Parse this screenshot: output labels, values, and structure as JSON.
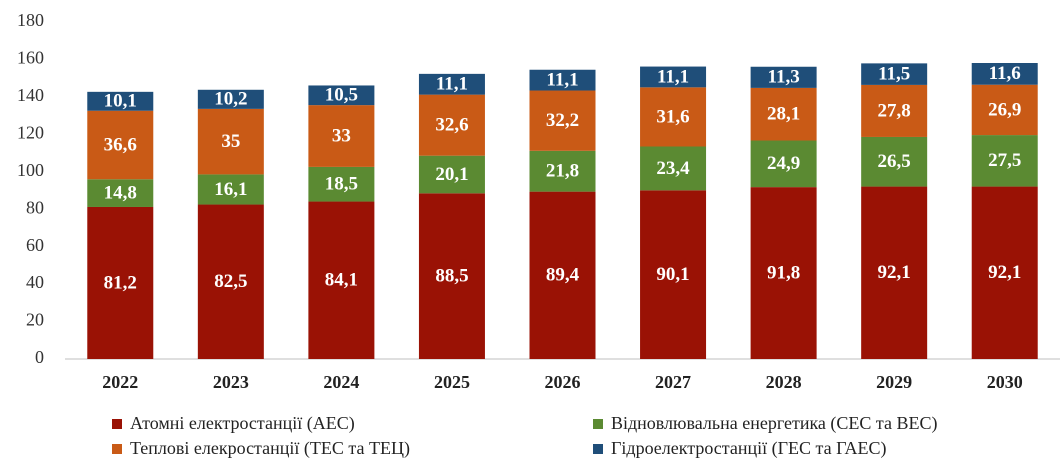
{
  "chart_data": {
    "type": "bar",
    "stacked": true,
    "categories": [
      "2022",
      "2023",
      "2024",
      "2025",
      "2026",
      "2027",
      "2028",
      "2029",
      "2030"
    ],
    "series": [
      {
        "name": "Атомні електростанції (АЕС)",
        "color": "#9a1205",
        "values": [
          81.2,
          82.5,
          84.1,
          88.5,
          89.4,
          90.1,
          91.8,
          92.1,
          92.1
        ],
        "value_labels": [
          "81,2",
          "82,5",
          "84,1",
          "88,5",
          "89,4",
          "90,1",
          "91,8",
          "92,1",
          "92,1"
        ]
      },
      {
        "name": "Відновлювальна енергетика (СЕС та ВЕС)",
        "color": "#5b8a32",
        "values": [
          14.8,
          16.1,
          18.5,
          20.1,
          21.8,
          23.4,
          24.9,
          26.5,
          27.5
        ],
        "value_labels": [
          "14,8",
          "16,1",
          "18,5",
          "20,1",
          "21,8",
          "23,4",
          "24,9",
          "26,5",
          "27,5"
        ]
      },
      {
        "name": "Теплові елекростанції (ТЕС та ТЕЦ)",
        "color": "#c95a16",
        "values": [
          36.6,
          35,
          33,
          32.6,
          32.2,
          31.6,
          28.1,
          27.8,
          26.9
        ],
        "value_labels": [
          "36,6",
          "35",
          "33",
          "32,6",
          "32,2",
          "31,6",
          "28,1",
          "27,8",
          "26,9"
        ]
      },
      {
        "name": "Гідроелектростанції (ГЕС та ГАЕС)",
        "color": "#1f4e79",
        "values": [
          10.1,
          10.2,
          10.5,
          11.1,
          11.1,
          11.1,
          11.3,
          11.5,
          11.6
        ],
        "value_labels": [
          "10,1",
          "10,2",
          "10,5",
          "11,1",
          "11,1",
          "11,1",
          "11,3",
          "11,5",
          "11,6"
        ]
      }
    ],
    "ylim": [
      0,
      180
    ],
    "yticks": [
      0,
      20,
      40,
      60,
      80,
      100,
      120,
      140,
      160,
      180
    ],
    "grid": false
  }
}
